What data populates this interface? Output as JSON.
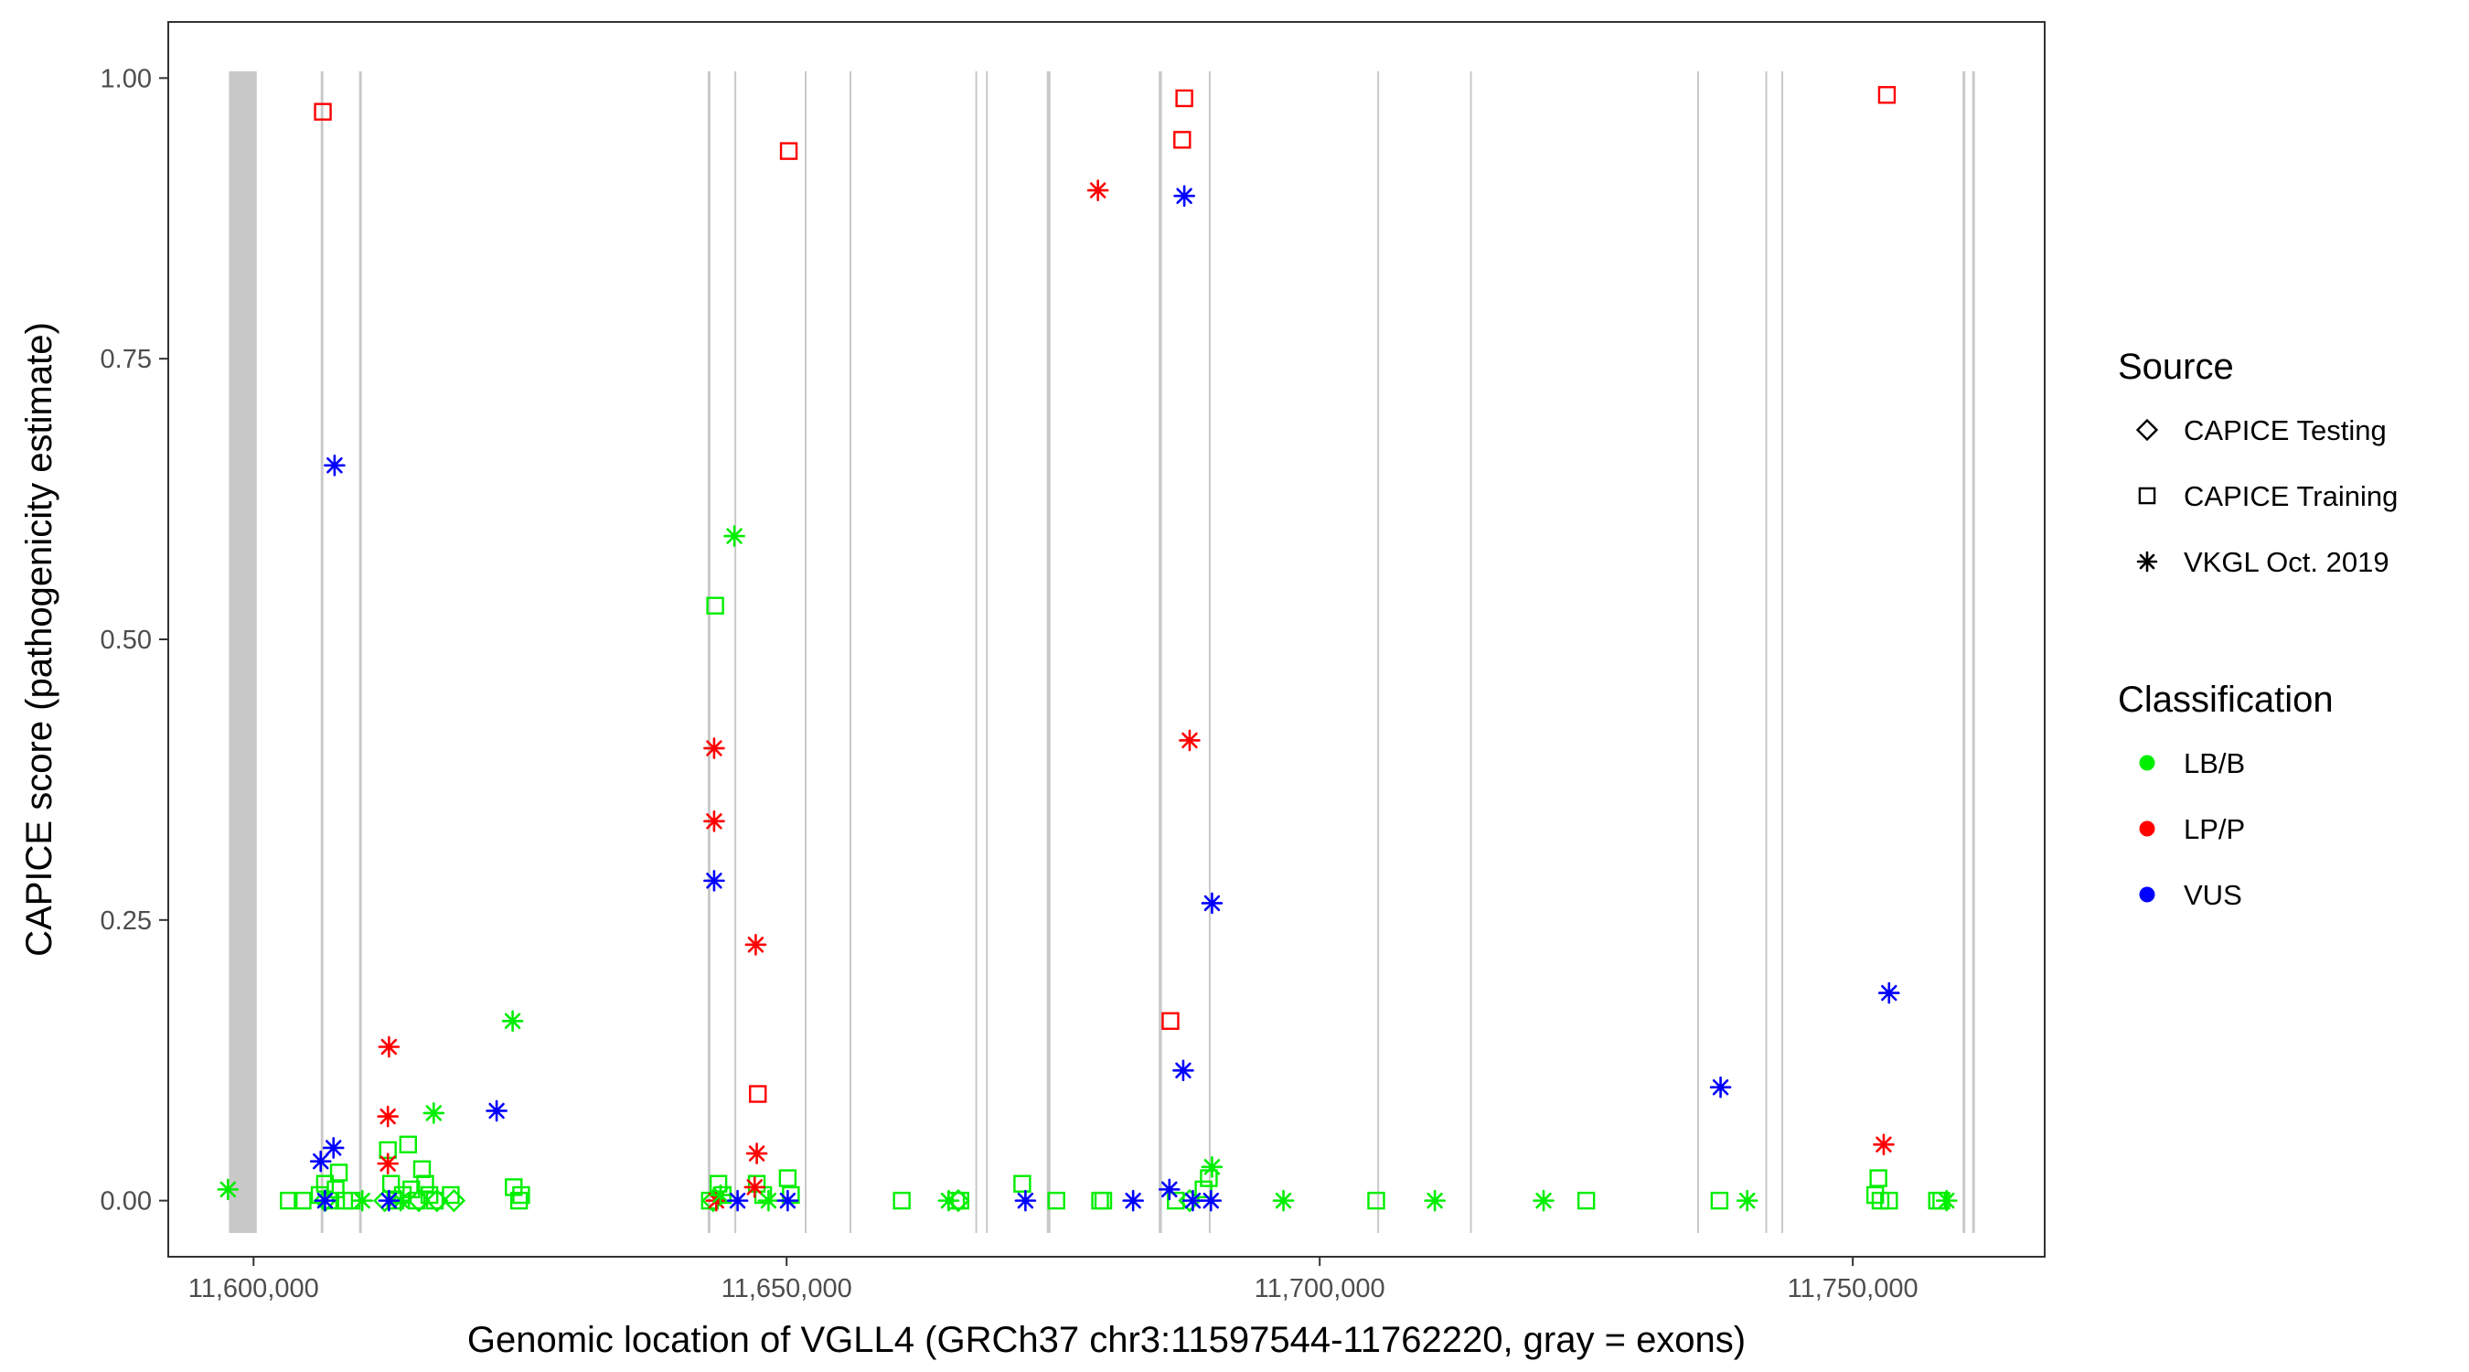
{
  "chart_data": {
    "type": "scatter",
    "xlabel": "Genomic location of VGLL4 (GRCh37 chr3:11597544-11762220, gray = exons)",
    "ylabel": "CAPICE score (pathogenicity estimate)",
    "xlim": [
      11592000,
      11768000
    ],
    "ylim": [
      -0.05,
      1.05
    ],
    "x_ticks": [
      {
        "value": 11600000,
        "label": "11,600,000"
      },
      {
        "value": 11650000,
        "label": "11,650,000"
      },
      {
        "value": 11700000,
        "label": "11,700,000"
      },
      {
        "value": 11750000,
        "label": "11,750,000"
      }
    ],
    "y_ticks": [
      {
        "value": 0,
        "label": "0.00"
      },
      {
        "value": 0.25,
        "label": "0.25"
      },
      {
        "value": 0.5,
        "label": "0.50"
      },
      {
        "value": 0.75,
        "label": "0.75"
      },
      {
        "value": 1.0,
        "label": "1.00"
      }
    ],
    "grid": false,
    "exons": [
      {
        "start": 11597700,
        "end": 11600300
      },
      {
        "start": 11606300,
        "end": 11606550
      },
      {
        "start": 11609900,
        "end": 11610150
      },
      {
        "start": 11642600,
        "end": 11642850
      },
      {
        "start": 11645100,
        "end": 11645250
      },
      {
        "start": 11651700,
        "end": 11651850
      },
      {
        "start": 11655900,
        "end": 11656050
      },
      {
        "start": 11667700,
        "end": 11667850
      },
      {
        "start": 11668700,
        "end": 11668850
      },
      {
        "start": 11674400,
        "end": 11674750
      },
      {
        "start": 11684900,
        "end": 11685200
      },
      {
        "start": 11689600,
        "end": 11689750
      },
      {
        "start": 11705400,
        "end": 11705550
      },
      {
        "start": 11714100,
        "end": 11714250
      },
      {
        "start": 11735400,
        "end": 11735550
      },
      {
        "start": 11741800,
        "end": 11741950
      },
      {
        "start": 11743300,
        "end": 11743450
      },
      {
        "start": 11760300,
        "end": 11760550
      },
      {
        "start": 11761200,
        "end": 11761450
      }
    ],
    "legend": {
      "position": "right",
      "source_title": "Source",
      "source_items": [
        {
          "label": "CAPICE Testing",
          "shape": "diamond"
        },
        {
          "label": "CAPICE Training",
          "shape": "square"
        },
        {
          "label": "VKGL Oct. 2019",
          "shape": "asterisk"
        }
      ],
      "class_title": "Classification",
      "class_items": [
        {
          "label": "LB/B",
          "color": "#00ee00"
        },
        {
          "label": "LP/P",
          "color": "#ff0000"
        },
        {
          "label": "VUS",
          "color": "#0000ff"
        }
      ]
    },
    "colors": {
      "LB/B": "#00ee00",
      "LP/P": "#ff0000",
      "VUS": "#0000ff",
      "exon": "#c8c8c8"
    },
    "series": [
      {
        "source": "CAPICE Training",
        "classification": "LP/P",
        "points": [
          [
            11606500,
            0.97
          ],
          [
            11650200,
            0.935
          ],
          [
            11687100,
            0.945
          ],
          [
            11687300,
            0.982
          ],
          [
            11753200,
            0.985
          ],
          [
            11686000,
            0.16
          ],
          [
            11647300,
            0.095
          ]
        ]
      },
      {
        "source": "CAPICE Training",
        "classification": "LB/B",
        "points": [
          [
            11643300,
            0.53
          ],
          [
            11603300,
            0.0
          ],
          [
            11604600,
            0.0
          ],
          [
            11606200,
            0.005
          ],
          [
            11606700,
            0.015
          ],
          [
            11607200,
            0.0
          ],
          [
            11607700,
            0.01
          ],
          [
            11608000,
            0.025
          ],
          [
            11608500,
            0.0
          ],
          [
            11609200,
            0.0
          ],
          [
            11612600,
            0.045
          ],
          [
            11612900,
            0.015
          ],
          [
            11613300,
            0.0
          ],
          [
            11614000,
            0.005
          ],
          [
            11614500,
            0.05
          ],
          [
            11614800,
            0.01
          ],
          [
            11615300,
            0.0
          ],
          [
            11615800,
            0.028
          ],
          [
            11616100,
            0.015
          ],
          [
            11616500,
            0.005
          ],
          [
            11617000,
            0.0
          ],
          [
            11618500,
            0.005
          ],
          [
            11624400,
            0.012
          ],
          [
            11624900,
            0.0
          ],
          [
            11625100,
            0.005
          ],
          [
            11642800,
            0.0
          ],
          [
            11643600,
            0.015
          ],
          [
            11644000,
            0.005
          ],
          [
            11647200,
            0.015
          ],
          [
            11647800,
            0.005
          ],
          [
            11650100,
            0.02
          ],
          [
            11650400,
            0.005
          ],
          [
            11660800,
            0.0
          ],
          [
            11665900,
            0.0
          ],
          [
            11666300,
            0.0
          ],
          [
            11672100,
            0.015
          ],
          [
            11675300,
            0.0
          ],
          [
            11679400,
            0.0
          ],
          [
            11679700,
            0.0
          ],
          [
            11686500,
            0.0
          ],
          [
            11689100,
            0.01
          ],
          [
            11689600,
            0.02
          ],
          [
            11705300,
            0.0
          ],
          [
            11725000,
            0.0
          ],
          [
            11737500,
            0.0
          ],
          [
            11752400,
            0.02
          ],
          [
            11752100,
            0.005
          ],
          [
            11752600,
            0.0
          ],
          [
            11753400,
            0.0
          ],
          [
            11757900,
            0.0
          ],
          [
            11758300,
            0.0
          ]
        ]
      },
      {
        "source": "CAPICE Testing",
        "classification": "LB/B",
        "points": [
          [
            11606700,
            0.0
          ],
          [
            11612300,
            0.0
          ],
          [
            11615500,
            0.0
          ],
          [
            11617200,
            0.0
          ],
          [
            11618800,
            0.0
          ],
          [
            11643100,
            0.0
          ],
          [
            11666100,
            0.0
          ],
          [
            11687800,
            0.0
          ]
        ]
      },
      {
        "source": "VKGL Oct. 2019",
        "classification": "LP/P",
        "points": [
          [
            11679200,
            0.9
          ],
          [
            11687800,
            0.41
          ],
          [
            11643200,
            0.403
          ],
          [
            11643200,
            0.338
          ],
          [
            11647100,
            0.228
          ],
          [
            11612700,
            0.137
          ],
          [
            11612600,
            0.075
          ],
          [
            11612600,
            0.033
          ],
          [
            11647200,
            0.042
          ],
          [
            11647000,
            0.012
          ],
          [
            11752900,
            0.05
          ],
          [
            11643400,
            0.0
          ]
        ]
      },
      {
        "source": "VKGL Oct. 2019",
        "classification": "LB/B",
        "points": [
          [
            11645100,
            0.592
          ],
          [
            11624300,
            0.16
          ],
          [
            11616900,
            0.078
          ],
          [
            11597600,
            0.01
          ],
          [
            11610200,
            0.0
          ],
          [
            11613800,
            0.0
          ],
          [
            11643800,
            0.005
          ],
          [
            11648300,
            0.0
          ],
          [
            11665200,
            0.0
          ],
          [
            11689900,
            0.03
          ],
          [
            11696600,
            0.0
          ],
          [
            11710800,
            0.0
          ],
          [
            11721000,
            0.0
          ],
          [
            11740100,
            0.0
          ],
          [
            11758800,
            0.0
          ]
        ]
      },
      {
        "source": "VKGL Oct. 2019",
        "classification": "VUS",
        "points": [
          [
            11687300,
            0.895
          ],
          [
            11607600,
            0.655
          ],
          [
            11643200,
            0.285
          ],
          [
            11689900,
            0.265
          ],
          [
            11753400,
            0.185
          ],
          [
            11687200,
            0.116
          ],
          [
            11737600,
            0.101
          ],
          [
            11622800,
            0.08
          ],
          [
            11607500,
            0.047
          ],
          [
            11606300,
            0.035
          ],
          [
            11606700,
            0.0
          ],
          [
            11612700,
            0.0
          ],
          [
            11645400,
            0.0
          ],
          [
            11650100,
            0.0
          ],
          [
            11672400,
            0.0
          ],
          [
            11682500,
            0.0
          ],
          [
            11685900,
            0.01
          ],
          [
            11688100,
            0.0
          ],
          [
            11689800,
            0.0
          ]
        ]
      }
    ]
  }
}
